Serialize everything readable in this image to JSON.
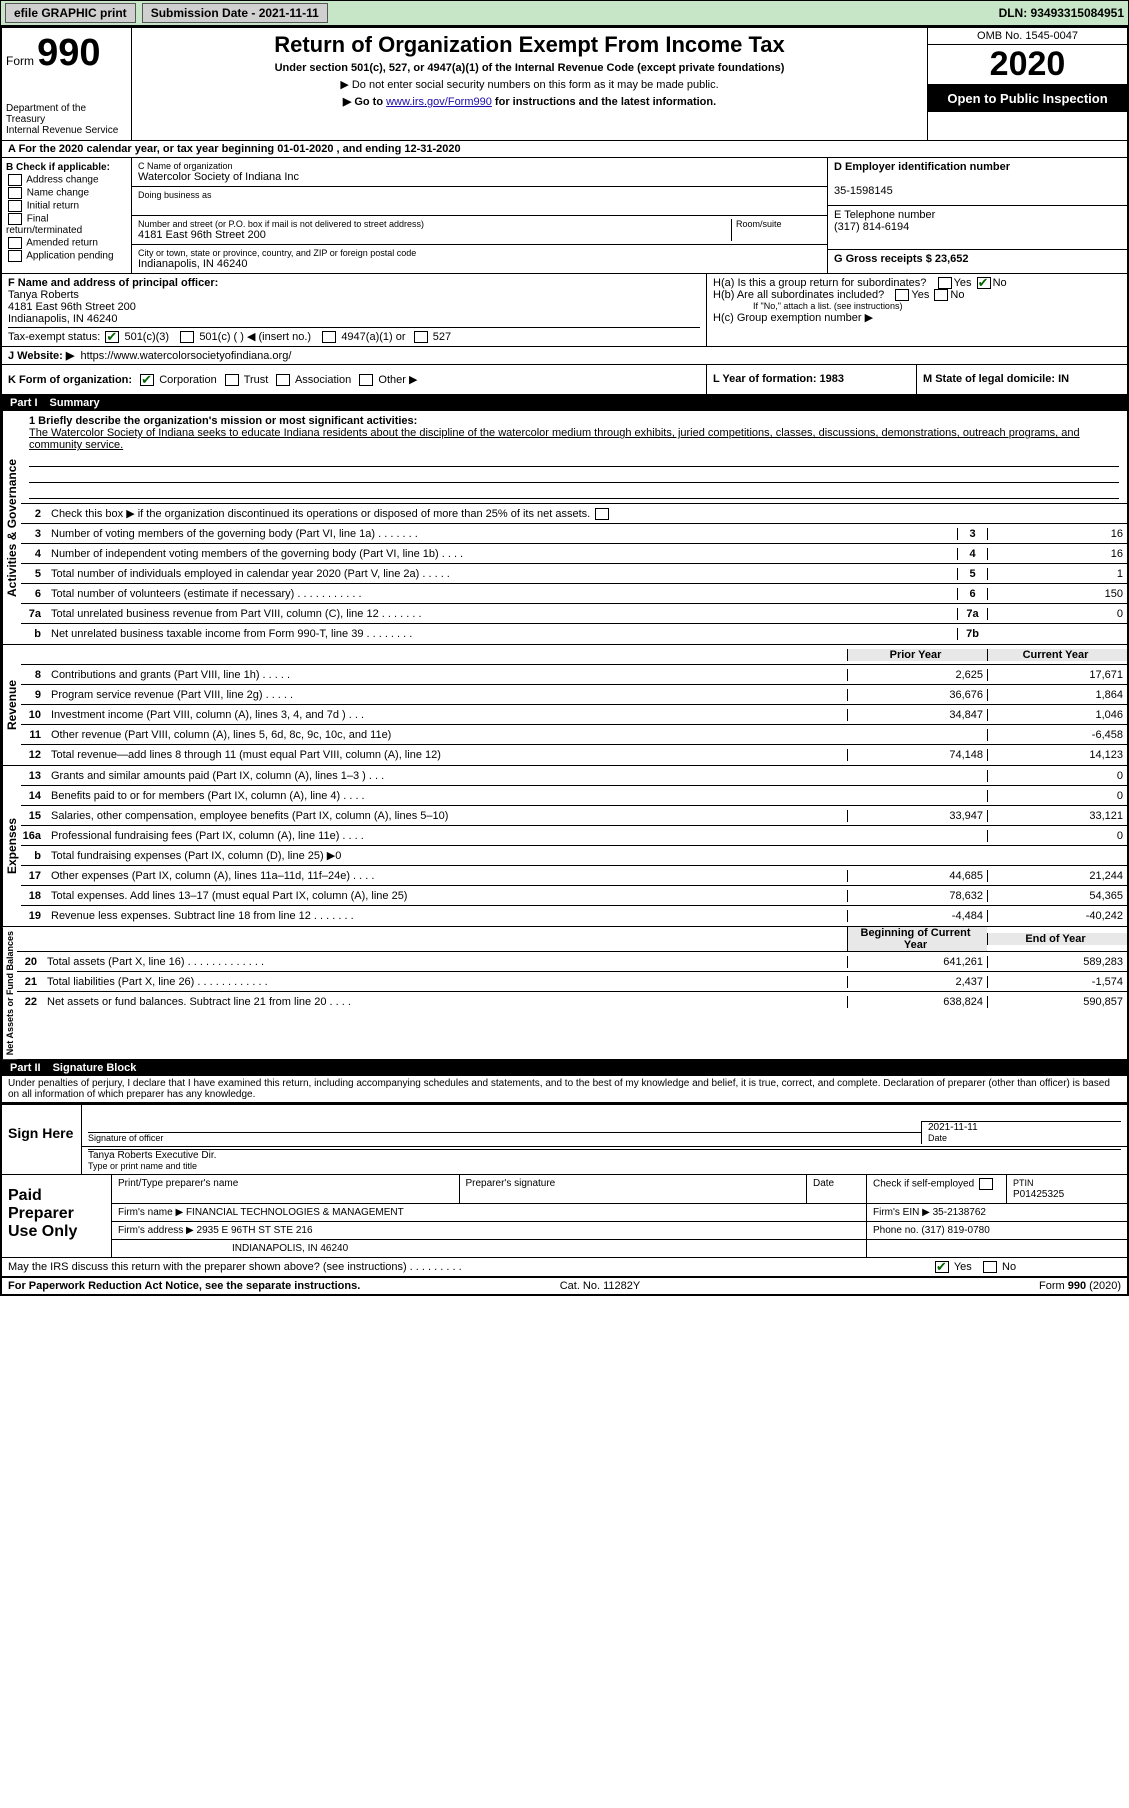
{
  "topbar": {
    "efile": "efile GRAPHIC print",
    "submission": "Submission Date - 2021-11-11",
    "dln": "DLN: 93493315084951"
  },
  "header": {
    "form_label": "Form",
    "form_no": "990",
    "title": "Return of Organization Exempt From Income Tax",
    "subtitle": "Under section 501(c), 527, or 4947(a)(1) of the Internal Revenue Code (except private foundations)",
    "note1": "▶ Do not enter social security numbers on this form as it may be made public.",
    "note2_pre": "▶ Go to ",
    "note2_link": "www.irs.gov/Form990",
    "note2_post": " for instructions and the latest information.",
    "dept": "Department of the Treasury\nInternal Revenue Service",
    "omb": "OMB No. 1545-0047",
    "year": "2020",
    "open": "Open to Public Inspection"
  },
  "rowA": "A For the 2020 calendar year, or tax year beginning 01-01-2020     , and ending 12-31-2020",
  "colB": {
    "title": "B Check if applicable:",
    "items": [
      "Address change",
      "Name change",
      "Initial return",
      "Final return/terminated",
      "Amended return",
      "Application pending"
    ]
  },
  "colC": {
    "name_lbl": "C Name of organization",
    "name": "Watercolor Society of Indiana Inc",
    "dba_lbl": "Doing business as",
    "addr_lbl": "Number and street (or P.O. box if mail is not delivered to street address)",
    "room_lbl": "Room/suite",
    "addr": "4181 East 96th Street 200",
    "city_lbl": "City or town, state or province, country, and ZIP or foreign postal code",
    "city": "Indianapolis, IN  46240"
  },
  "colD": {
    "ein_lbl": "D Employer identification number",
    "ein": "35-1598145",
    "tel_lbl": "E Telephone number",
    "tel": "(317) 814-6194",
    "gross_lbl": "G Gross receipts $ 23,652"
  },
  "rowF": {
    "lbl": "F  Name and address of principal officer:",
    "name": "Tanya Roberts",
    "addr1": "4181 East 96th Street 200",
    "addr2": "Indianapolis, IN  46240"
  },
  "rowH": {
    "ha": "H(a)  Is this a group return for subordinates?",
    "hb": "H(b)  Are all subordinates included?",
    "hb_note": "If \"No,\" attach a list. (see instructions)",
    "hc": "H(c)  Group exemption number ▶"
  },
  "rowI_lbl": "Tax-exempt status:",
  "rowI_501c3": "501(c)(3)",
  "rowI_501c": "501(c) (   ) ◀ (insert no.)",
  "rowI_4947": "4947(a)(1) or",
  "rowI_527": "527",
  "rowJ_lbl": "J   Website: ▶",
  "rowJ_val": "https://www.watercolorsocietyofindiana.org/",
  "rowK_lbl": "K Form of organization:",
  "rowK_opts": [
    "Corporation",
    "Trust",
    "Association",
    "Other ▶"
  ],
  "rowL": "L Year of formation: 1983",
  "rowM": "M State of legal domicile: IN",
  "part1": {
    "hdr_no": "Part I",
    "hdr_txt": "Summary",
    "l1_lbl": "1  Briefly describe the organization's mission or most significant activities:",
    "l1_txt": "The Watercolor Society of Indiana seeks to educate Indiana residents about the discipline of the watercolor medium through exhibits, juried competitions, classes, discussions, demonstrations, outreach programs, and community service.",
    "l2": "Check this box ▶        if the organization discontinued its operations or disposed of more than 25% of its net assets."
  },
  "side_labels": {
    "gov": "Activities & Governance",
    "rev": "Revenue",
    "exp": "Expenses",
    "net": "Net Assets or Fund Balances"
  },
  "gov_lines": [
    {
      "no": "3",
      "desc": "Number of voting members of the governing body (Part VI, line 1a)   .   .   .   .   .   .   .",
      "box": "3",
      "v": "16"
    },
    {
      "no": "4",
      "desc": "Number of independent voting members of the governing body (Part VI, line 1b)   .   .   .   .",
      "box": "4",
      "v": "16"
    },
    {
      "no": "5",
      "desc": "Total number of individuals employed in calendar year 2020 (Part V, line 2a)   .   .   .   .   .",
      "box": "5",
      "v": "1"
    },
    {
      "no": "6",
      "desc": "Total number of volunteers (estimate if necessary)    .    .    .    .    .    .    .    .    .    .    .",
      "box": "6",
      "v": "150"
    },
    {
      "no": "7a",
      "desc": "Total unrelated business revenue from Part VIII, column (C), line 12   .   .   .   .   .   .   .",
      "box": "7a",
      "v": "0"
    },
    {
      "no": "b",
      "desc": "Net unrelated business taxable income from Form 990-T, line 39    .   .   .   .   .   .   .   .",
      "box": "7b",
      "v": ""
    }
  ],
  "col_hdrs": {
    "prior": "Prior Year",
    "current": "Current Year"
  },
  "rev_lines": [
    {
      "no": "8",
      "desc": "Contributions and grants (Part VIII, line 1h)    .    .    .    .    .",
      "p": "2,625",
      "c": "17,671"
    },
    {
      "no": "9",
      "desc": "Program service revenue (Part VIII, line 2g)    .    .    .    .    .",
      "p": "36,676",
      "c": "1,864"
    },
    {
      "no": "10",
      "desc": "Investment income (Part VIII, column (A), lines 3, 4, and 7d )    .    .    .",
      "p": "34,847",
      "c": "1,046"
    },
    {
      "no": "11",
      "desc": "Other revenue (Part VIII, column (A), lines 5, 6d, 8c, 9c, 10c, and 11e)",
      "p": "",
      "c": "-6,458"
    },
    {
      "no": "12",
      "desc": "Total revenue—add lines 8 through 11 (must equal Part VIII, column (A), line 12)",
      "p": "74,148",
      "c": "14,123"
    }
  ],
  "exp_lines": [
    {
      "no": "13",
      "desc": "Grants and similar amounts paid (Part IX, column (A), lines 1–3 )   .   .   .",
      "p": "",
      "c": "0"
    },
    {
      "no": "14",
      "desc": "Benefits paid to or for members (Part IX, column (A), line 4)   .   .   .   .",
      "p": "",
      "c": "0"
    },
    {
      "no": "15",
      "desc": "Salaries, other compensation, employee benefits (Part IX, column (A), lines 5–10)",
      "p": "33,947",
      "c": "33,121"
    },
    {
      "no": "16a",
      "desc": "Professional fundraising fees (Part IX, column (A), line 11e)   .   .   .   .",
      "p": "",
      "c": "0"
    },
    {
      "no": "b",
      "desc": "Total fundraising expenses (Part IX, column (D), line 25) ▶0",
      "p": "shade",
      "c": "shade"
    },
    {
      "no": "17",
      "desc": "Other expenses (Part IX, column (A), lines 11a–11d, 11f–24e)   .   .   .   .",
      "p": "44,685",
      "c": "21,244"
    },
    {
      "no": "18",
      "desc": "Total expenses. Add lines 13–17 (must equal Part IX, column (A), line 25)",
      "p": "78,632",
      "c": "54,365"
    },
    {
      "no": "19",
      "desc": "Revenue less expenses. Subtract line 18 from line 12 .   .   .   .   .   .   .",
      "p": "-4,484",
      "c": "-40,242"
    }
  ],
  "net_hdrs": {
    "begin": "Beginning of Current Year",
    "end": "End of Year"
  },
  "net_lines": [
    {
      "no": "20",
      "desc": "Total assets (Part X, line 16)  .   .   .   .   .   .   .   .   .   .   .   .   .",
      "p": "641,261",
      "c": "589,283"
    },
    {
      "no": "21",
      "desc": "Total liabilities (Part X, line 26)  .   .   .   .   .   .   .   .   .   .   .   .",
      "p": "2,437",
      "c": "-1,574"
    },
    {
      "no": "22",
      "desc": "Net assets or fund balances. Subtract line 21 from line 20   .   .   .   .",
      "p": "638,824",
      "c": "590,857"
    }
  ],
  "part2": {
    "hdr_no": "Part II",
    "hdr_txt": "Signature Block",
    "penalty": "Under penalties of perjury, I declare that I have examined this return, including accompanying schedules and statements, and to the best of my knowledge and belief, it is true, correct, and complete. Declaration of preparer (other than officer) is based on all information of which preparer has any knowledge."
  },
  "sign": {
    "side": "Sign Here",
    "sig_lbl": "Signature of officer",
    "date_lbl": "Date",
    "date": "2021-11-11",
    "name": "Tanya Roberts Executive Dir.",
    "name_lbl": "Type or print name and title"
  },
  "paid": {
    "side": "Paid Preparer Use Only",
    "r1_c1": "Print/Type preparer's name",
    "r1_c2": "Preparer's signature",
    "r1_c3": "Date",
    "r1_c4_lbl": "Check         if self-employed",
    "r1_c5_lbl": "PTIN",
    "r1_c5": "P01425325",
    "r2_lbl": "Firm's name      ▶",
    "r2_val": "FINANCIAL TECHNOLOGIES & MANAGEMENT",
    "r2_ein_lbl": "Firm's EIN ▶",
    "r2_ein": "35-2138762",
    "r3_lbl": "Firm's address ▶",
    "r3_val": "2935 E 96TH ST STE 216",
    "r3_tel_lbl": "Phone no.",
    "r3_tel": "(317) 819-0780",
    "r4_val": "INDIANAPOLIS, IN  46240"
  },
  "discuss": "May the IRS discuss this return with the preparer shown above? (see instructions)    .    .    .    .    .    .    .    .    .",
  "footer": {
    "left": "For Paperwork Reduction Act Notice, see the separate instructions.",
    "mid": "Cat. No. 11282Y",
    "right": "Form 990 (2020)"
  }
}
